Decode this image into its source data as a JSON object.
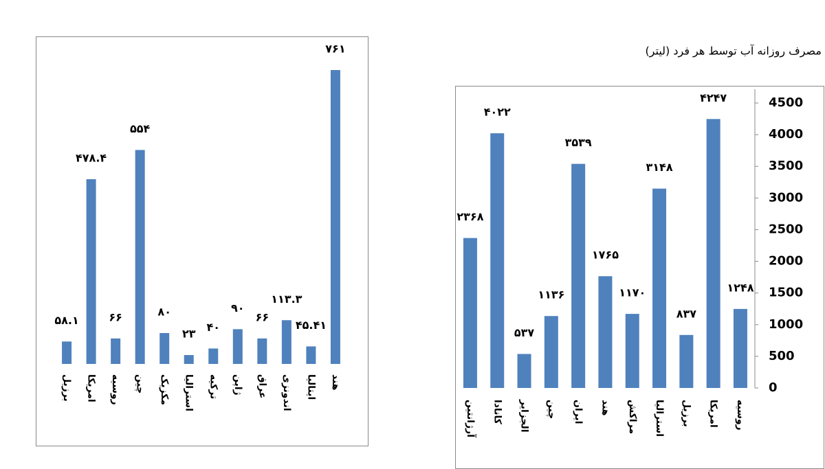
{
  "chart_data": [
    {
      "type": "bar",
      "categories": [
        "برزیل",
        "امریکا",
        "روسیه",
        "چین",
        "مکزیک",
        "استرالیا",
        "ترکیه",
        "ژاپن",
        "عراق",
        "اندونزی",
        "ایتالیا",
        "هند"
      ],
      "values": [
        58.1,
        478.4,
        66,
        554,
        80,
        23,
        40,
        90,
        66,
        113.3,
        45.41,
        761
      ],
      "value_labels": [
        "۵۸.۱",
        "۴۷۸.۴",
        "۶۶",
        "۵۵۴",
        "۸۰",
        "۲۳",
        "۴۰",
        "۹۰",
        "۶۶",
        "۱۱۳.۳",
        "۴۵.۴۱",
        "۷۶۱"
      ],
      "color": "#4f81bd"
    },
    {
      "type": "bar",
      "title": "مصرف روزانه آب توسط هر فرد (لیتر)",
      "categories": [
        "آرژانتین",
        "کانادا",
        "الجزایر",
        "چین",
        "ایران",
        "هند",
        "مراکش",
        "استرالیا",
        "برزیل",
        "امریکا",
        "روسیه"
      ],
      "values": [
        2368,
        4022,
        537,
        1136,
        3539,
        1765,
        1170,
        3148,
        837,
        4247,
        1248
      ],
      "value_labels": [
        "۲۳۶۸",
        "۴۰۲۲",
        "۵۳۷",
        "۱۱۳۶",
        "۳۵۳۹",
        "۱۷۶۵",
        "۱۱۷۰",
        "۳۱۴۸",
        "۸۳۷",
        "۴۲۴۷",
        "۱۲۴۸"
      ],
      "ylim": [
        0,
        4500
      ],
      "yticks": [
        0,
        500,
        1000,
        1500,
        2000,
        2500,
        3000,
        3500,
        4000,
        4500
      ],
      "y_axis_side": "right",
      "color": "#4f81bd"
    }
  ]
}
